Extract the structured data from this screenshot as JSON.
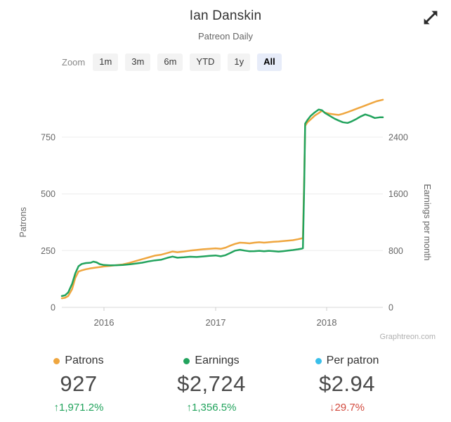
{
  "header": {
    "title": "Ian Danskin",
    "subtitle": "Patreon Daily"
  },
  "controls": {
    "zoom_label": "Zoom",
    "buttons": [
      {
        "label": "1m",
        "selected": false
      },
      {
        "label": "3m",
        "selected": false
      },
      {
        "label": "6m",
        "selected": false
      },
      {
        "label": "YTD",
        "selected": false
      },
      {
        "label": "1y",
        "selected": false
      },
      {
        "label": "All",
        "selected": true
      }
    ]
  },
  "chart_data": {
    "type": "line",
    "title": "Ian Danskin",
    "subtitle": "Patreon Daily",
    "grid": "horizontal",
    "legend_position": "bottom",
    "watermark": "Graphtreon.com",
    "x_axis": {
      "ticks": [
        {
          "label": "2016",
          "t": 0.1313
        },
        {
          "label": "2017",
          "t": 0.4792
        },
        {
          "label": "2018",
          "t": 0.8249
        }
      ]
    },
    "y_left": {
      "label": "Patrons",
      "ticks": [
        0,
        250,
        500,
        750
      ],
      "range": [
        0,
        930
      ]
    },
    "y_right": {
      "label": "Earnings per month",
      "ticks": [
        0,
        800,
        1600,
        2400
      ],
      "range": [
        0,
        2976
      ]
    },
    "series": [
      {
        "name": "Patrons",
        "axis": "left",
        "color": "#EFA63F",
        "points": [
          [
            0.0,
            40
          ],
          [
            0.01,
            42
          ],
          [
            0.02,
            50
          ],
          [
            0.032,
            80
          ],
          [
            0.042,
            130
          ],
          [
            0.052,
            158
          ],
          [
            0.062,
            163
          ],
          [
            0.075,
            168
          ],
          [
            0.09,
            172
          ],
          [
            0.105,
            175
          ],
          [
            0.12,
            178
          ],
          [
            0.131,
            180
          ],
          [
            0.15,
            183
          ],
          [
            0.17,
            186
          ],
          [
            0.19,
            189
          ],
          [
            0.21,
            196
          ],
          [
            0.23,
            204
          ],
          [
            0.25,
            212
          ],
          [
            0.27,
            220
          ],
          [
            0.29,
            228
          ],
          [
            0.31,
            232
          ],
          [
            0.33,
            240
          ],
          [
            0.345,
            246
          ],
          [
            0.36,
            243
          ],
          [
            0.38,
            246
          ],
          [
            0.4,
            250
          ],
          [
            0.42,
            253
          ],
          [
            0.44,
            256
          ],
          [
            0.46,
            258
          ],
          [
            0.479,
            260
          ],
          [
            0.495,
            258
          ],
          [
            0.51,
            263
          ],
          [
            0.525,
            272
          ],
          [
            0.54,
            280
          ],
          [
            0.555,
            285
          ],
          [
            0.57,
            284
          ],
          [
            0.585,
            282
          ],
          [
            0.6,
            285
          ],
          [
            0.615,
            287
          ],
          [
            0.63,
            285
          ],
          [
            0.645,
            287
          ],
          [
            0.66,
            289
          ],
          [
            0.675,
            290
          ],
          [
            0.69,
            292
          ],
          [
            0.705,
            294
          ],
          [
            0.72,
            296
          ],
          [
            0.735,
            300
          ],
          [
            0.748,
            304
          ],
          [
            0.751,
            306
          ],
          [
            0.755,
            560
          ],
          [
            0.758,
            800
          ],
          [
            0.765,
            815
          ],
          [
            0.775,
            828
          ],
          [
            0.788,
            845
          ],
          [
            0.8,
            856
          ],
          [
            0.81,
            866
          ],
          [
            0.82,
            858
          ],
          [
            0.835,
            853
          ],
          [
            0.85,
            850
          ],
          [
            0.862,
            848
          ],
          [
            0.875,
            853
          ],
          [
            0.89,
            860
          ],
          [
            0.905,
            868
          ],
          [
            0.92,
            876
          ],
          [
            0.935,
            884
          ],
          [
            0.95,
            892
          ],
          [
            0.965,
            900
          ],
          [
            0.98,
            908
          ],
          [
            1.0,
            915
          ]
        ]
      },
      {
        "name": "Earnings",
        "axis": "right",
        "color": "#22A35D",
        "points": [
          [
            0.0,
            160
          ],
          [
            0.01,
            170
          ],
          [
            0.02,
            210
          ],
          [
            0.032,
            330
          ],
          [
            0.042,
            480
          ],
          [
            0.052,
            580
          ],
          [
            0.062,
            612
          ],
          [
            0.075,
            625
          ],
          [
            0.09,
            630
          ],
          [
            0.098,
            645
          ],
          [
            0.108,
            635
          ],
          [
            0.118,
            610
          ],
          [
            0.131,
            597
          ],
          [
            0.15,
            592
          ],
          [
            0.17,
            594
          ],
          [
            0.19,
            598
          ],
          [
            0.21,
            606
          ],
          [
            0.23,
            618
          ],
          [
            0.25,
            630
          ],
          [
            0.27,
            648
          ],
          [
            0.29,
            662
          ],
          [
            0.31,
            672
          ],
          [
            0.33,
            700
          ],
          [
            0.345,
            716
          ],
          [
            0.36,
            700
          ],
          [
            0.38,
            706
          ],
          [
            0.4,
            714
          ],
          [
            0.42,
            710
          ],
          [
            0.44,
            718
          ],
          [
            0.46,
            726
          ],
          [
            0.479,
            732
          ],
          [
            0.495,
            720
          ],
          [
            0.51,
            736
          ],
          [
            0.525,
            768
          ],
          [
            0.54,
            800
          ],
          [
            0.555,
            812
          ],
          [
            0.57,
            800
          ],
          [
            0.585,
            790
          ],
          [
            0.6,
            792
          ],
          [
            0.615,
            797
          ],
          [
            0.63,
            790
          ],
          [
            0.645,
            797
          ],
          [
            0.66,
            792
          ],
          [
            0.675,
            785
          ],
          [
            0.69,
            792
          ],
          [
            0.705,
            800
          ],
          [
            0.72,
            808
          ],
          [
            0.735,
            818
          ],
          [
            0.748,
            828
          ],
          [
            0.751,
            833
          ],
          [
            0.755,
            1700
          ],
          [
            0.758,
            2590
          ],
          [
            0.765,
            2640
          ],
          [
            0.775,
            2700
          ],
          [
            0.788,
            2750
          ],
          [
            0.8,
            2790
          ],
          [
            0.81,
            2780
          ],
          [
            0.82,
            2740
          ],
          [
            0.835,
            2700
          ],
          [
            0.85,
            2660
          ],
          [
            0.862,
            2635
          ],
          [
            0.875,
            2610
          ],
          [
            0.89,
            2600
          ],
          [
            0.902,
            2620
          ],
          [
            0.915,
            2650
          ],
          [
            0.93,
            2690
          ],
          [
            0.945,
            2720
          ],
          [
            0.96,
            2700
          ],
          [
            0.975,
            2670
          ],
          [
            0.99,
            2680
          ],
          [
            1.0,
            2680
          ]
        ]
      }
    ]
  },
  "stats": [
    {
      "label": "Patrons",
      "dot_color": "#EFA63F",
      "value": "927",
      "arrow": "↑",
      "change": "1,971.2%",
      "change_color": "#21A35C"
    },
    {
      "label": "Earnings",
      "dot_color": "#22A35D",
      "value": "$2,724",
      "arrow": "↑",
      "change": "1,356.5%",
      "change_color": "#21A35C"
    },
    {
      "label": "Per patron",
      "dot_color": "#39BFEA",
      "value": "$2.94",
      "arrow": "↓",
      "change": "29.7%",
      "change_color": "#D24A3E"
    }
  ]
}
